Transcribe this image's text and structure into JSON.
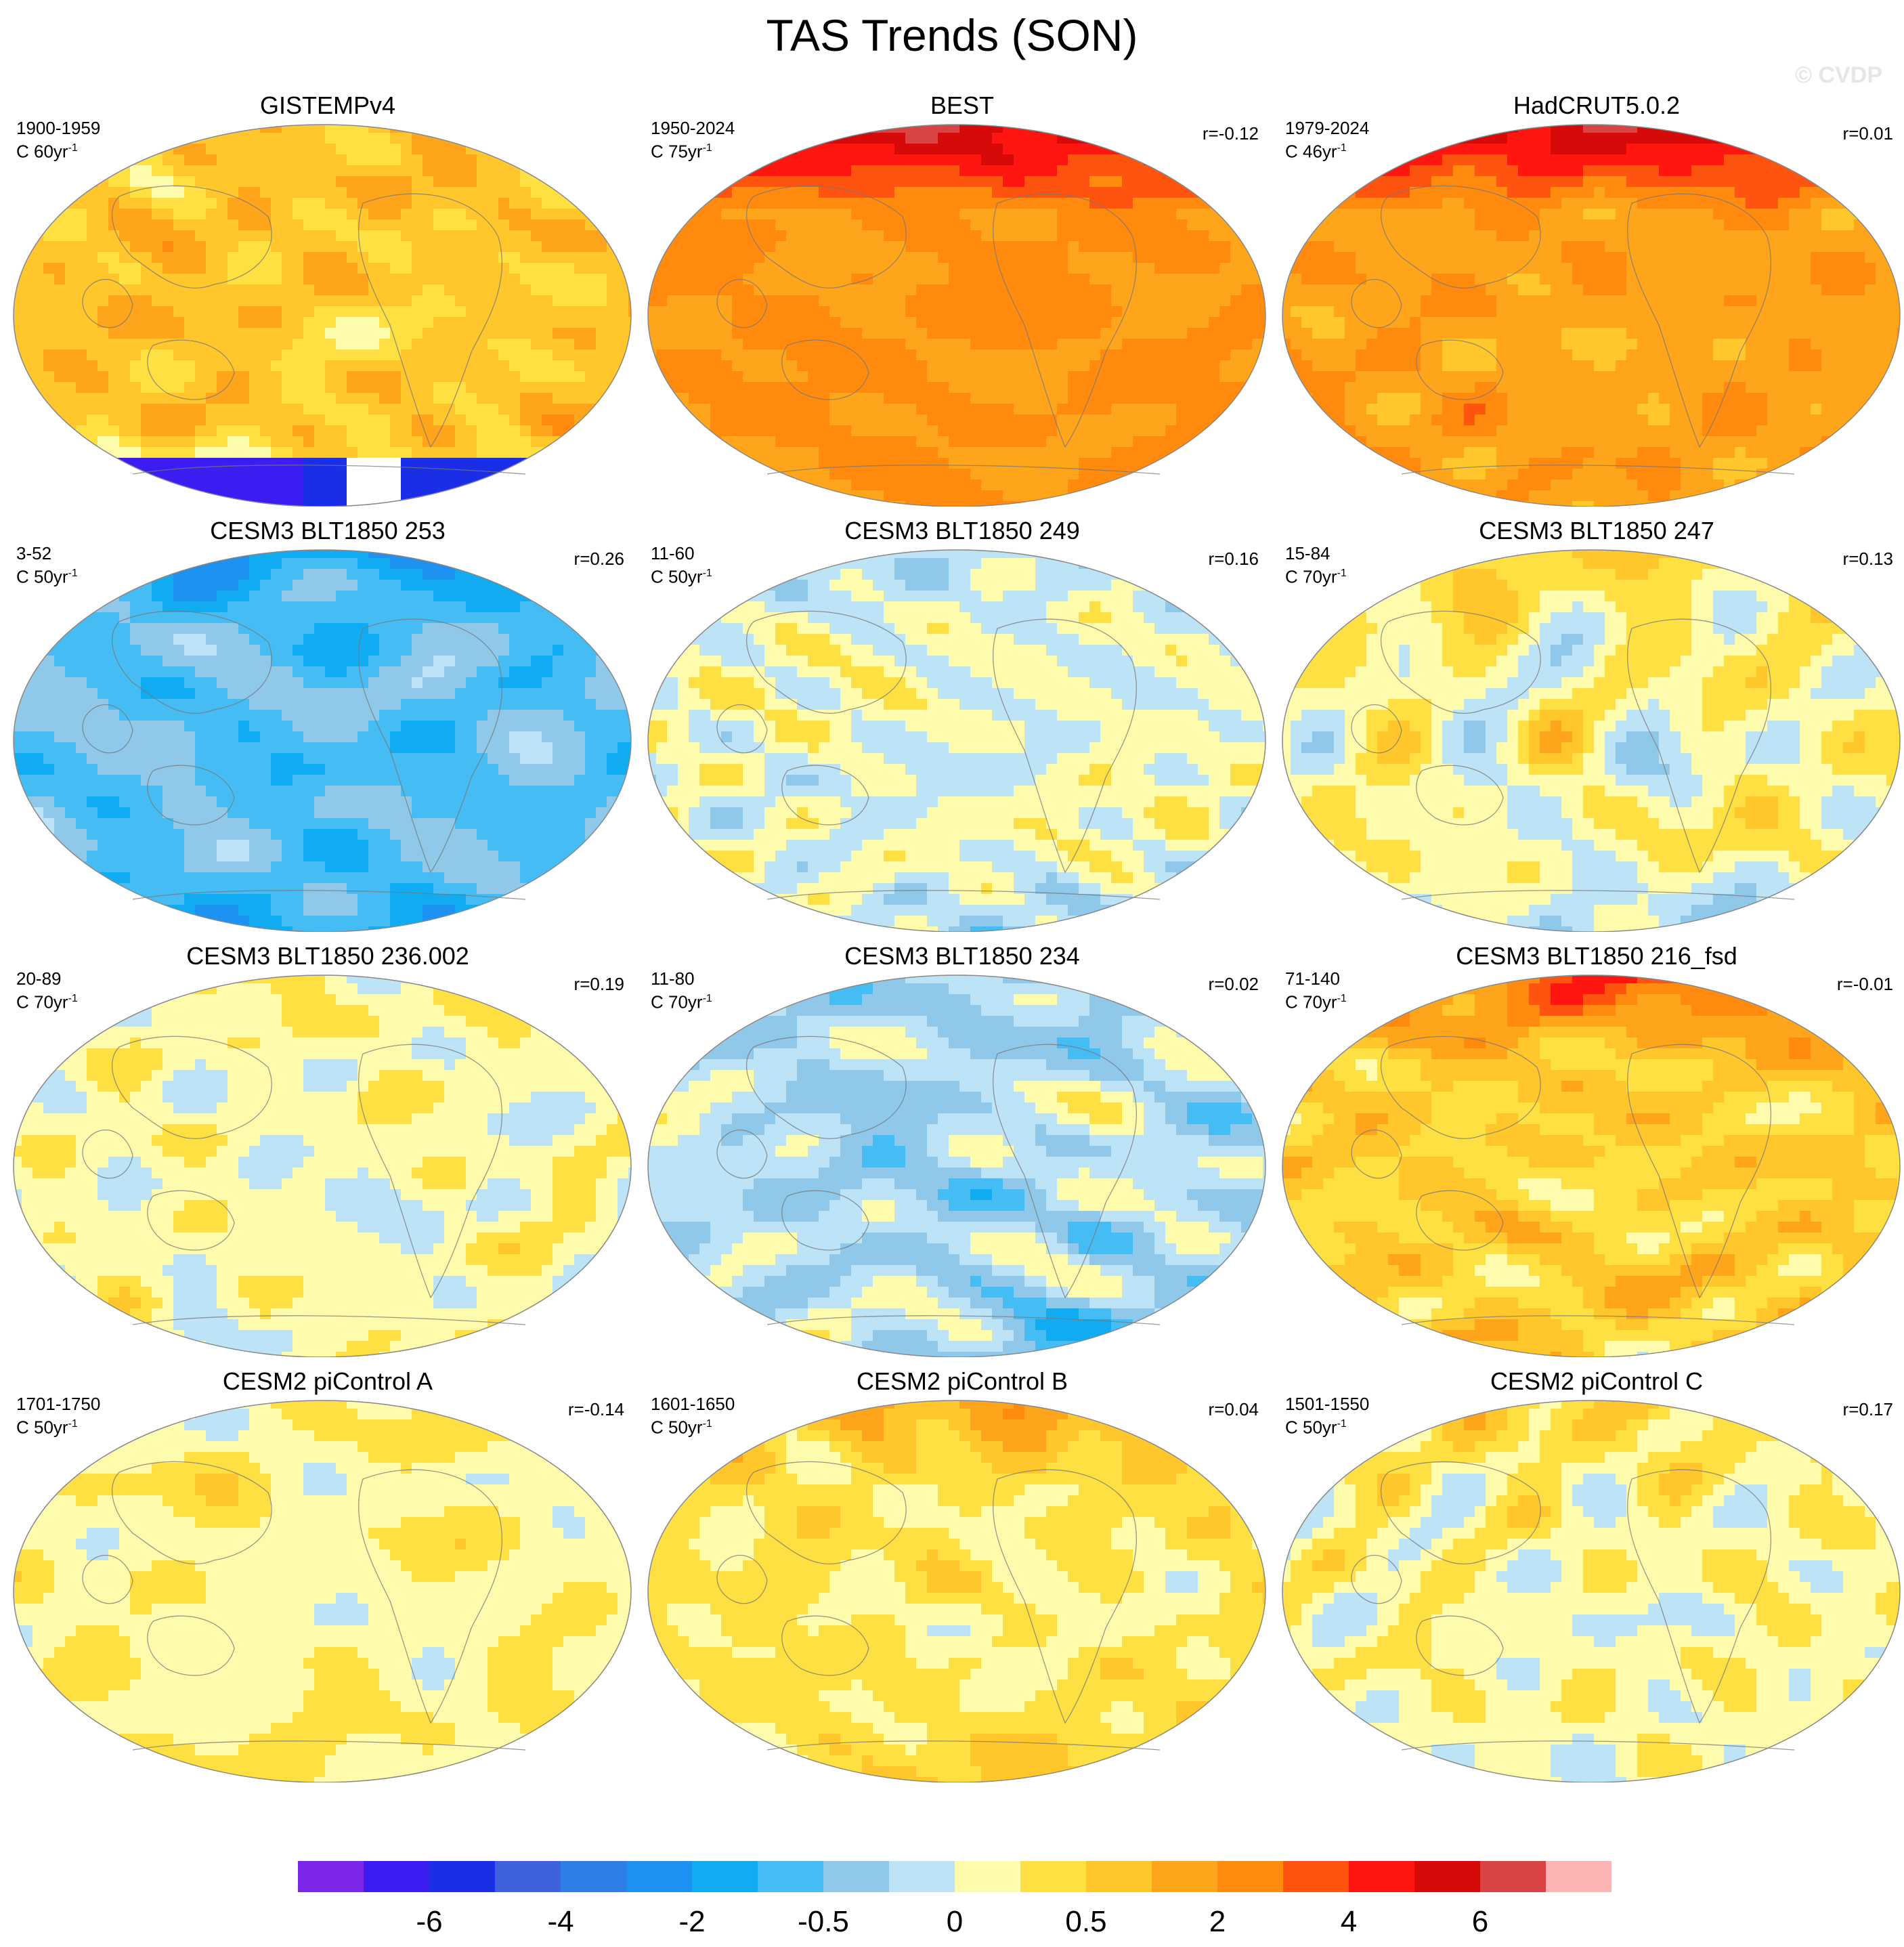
{
  "title": "TAS Trends (SON)",
  "watermark": "© CVDP",
  "colorbar": {
    "colors": [
      "#7b26e9",
      "#3b1df2",
      "#1a2ee6",
      "#3d62dc",
      "#2f7ee8",
      "#1d92f2",
      "#11abf2",
      "#45bdf4",
      "#90c8ea",
      "#bde3f6",
      "#fefbad",
      "#ffe042",
      "#ffc72b",
      "#ffa51b",
      "#ff8a0e",
      "#ff5410",
      "#ff1610",
      "#d70a0a",
      "#d94343",
      "#fdb4b4"
    ],
    "labels": [
      "-6",
      "-4",
      "-2",
      "-0.5",
      "0",
      "0.5",
      "2",
      "4",
      "6"
    ]
  },
  "chart_data": [
    {
      "type": "heatmap",
      "title": "GISTEMPv4",
      "period": "1900-1959",
      "units": "C 60yr",
      "units_sup": "-1",
      "r": "",
      "pattern": "gistemp",
      "base": 12,
      "amp": 1.6,
      "north": 0,
      "south": -4,
      "seed": 1
    },
    {
      "type": "heatmap",
      "title": "BEST",
      "period": "1950-2024",
      "units": "C 75yr",
      "units_sup": "-1",
      "r": "r=-0.12",
      "pattern": "best",
      "base": 13.6,
      "amp": 0.9,
      "north": 3.8,
      "south": 0,
      "seed": 2
    },
    {
      "type": "heatmap",
      "title": "HadCRUT5.0.2",
      "period": "1979-2024",
      "units": "C 46yr",
      "units_sup": "-1",
      "r": "r=0.01",
      "pattern": "hadcrut",
      "base": 13.2,
      "amp": 1.3,
      "north": 4.2,
      "south": 0,
      "seed": 3
    },
    {
      "type": "heatmap",
      "title": "CESM3 BLT1850 253",
      "period": "3-52",
      "units": "C 50yr",
      "units_sup": "-1",
      "r": "r=0.26",
      "pattern": "cool",
      "base": 7.4,
      "amp": 1.7,
      "north": -1.5,
      "south": -1.5,
      "seed": 4
    },
    {
      "type": "heatmap",
      "title": "CESM3 BLT1850 249",
      "period": "11-60",
      "units": "C 50yr",
      "units_sup": "-1",
      "r": "r=0.16",
      "pattern": "mixed",
      "base": 9.8,
      "amp": 1.8,
      "north": -1,
      "south": -1.2,
      "seed": 5
    },
    {
      "type": "heatmap",
      "title": "CESM3 BLT1850 247",
      "period": "15-84",
      "units": "C 70yr",
      "units_sup": "-1",
      "r": "r=0.13",
      "pattern": "mixed",
      "base": 10.2,
      "amp": 1.8,
      "north": 1,
      "south": -1.5,
      "seed": 6
    },
    {
      "type": "heatmap",
      "title": "CESM3 BLT1850 236.002",
      "period": "20-89",
      "units": "C 70yr",
      "units_sup": "-1",
      "r": "r=0.19",
      "pattern": "mixed",
      "base": 10,
      "amp": 1.8,
      "north": 0.5,
      "south": 0,
      "seed": 7
    },
    {
      "type": "heatmap",
      "title": "CESM3 BLT1850 234",
      "period": "11-80",
      "units": "C 70yr",
      "units_sup": "-1",
      "r": "r=0.02",
      "pattern": "cool",
      "base": 8.8,
      "amp": 1.8,
      "north": -0.5,
      "south": -0.8,
      "seed": 8
    },
    {
      "type": "heatmap",
      "title": "CESM3 BLT1850 216_fsd",
      "period": "71-140",
      "units": "C 70yr",
      "units_sup": "-1",
      "r": "r=-0.01",
      "pattern": "warm",
      "base": 11.6,
      "amp": 1.7,
      "north": 3.2,
      "south": 0,
      "seed": 9
    },
    {
      "type": "heatmap",
      "title": "CESM2 piControl A",
      "period": "1701-1750",
      "units": "C 50yr",
      "units_sup": "-1",
      "r": "r=-0.14",
      "pattern": "mixed",
      "base": 10.3,
      "amp": 1.5,
      "north": 0,
      "south": 0.5,
      "seed": 10
    },
    {
      "type": "heatmap",
      "title": "CESM2 piControl B",
      "period": "1601-1650",
      "units": "C 50yr",
      "units_sup": "-1",
      "r": "r=0.04",
      "pattern": "mixed",
      "base": 10.7,
      "amp": 1.4,
      "north": 2,
      "south": 1,
      "seed": 11
    },
    {
      "type": "heatmap",
      "title": "CESM2 piControl C",
      "period": "1501-1550",
      "units": "C 50yr",
      "units_sup": "-1",
      "r": "r=0.17",
      "pattern": "mixed",
      "base": 10.2,
      "amp": 1.5,
      "north": 1.2,
      "south": -0.5,
      "seed": 12
    }
  ]
}
